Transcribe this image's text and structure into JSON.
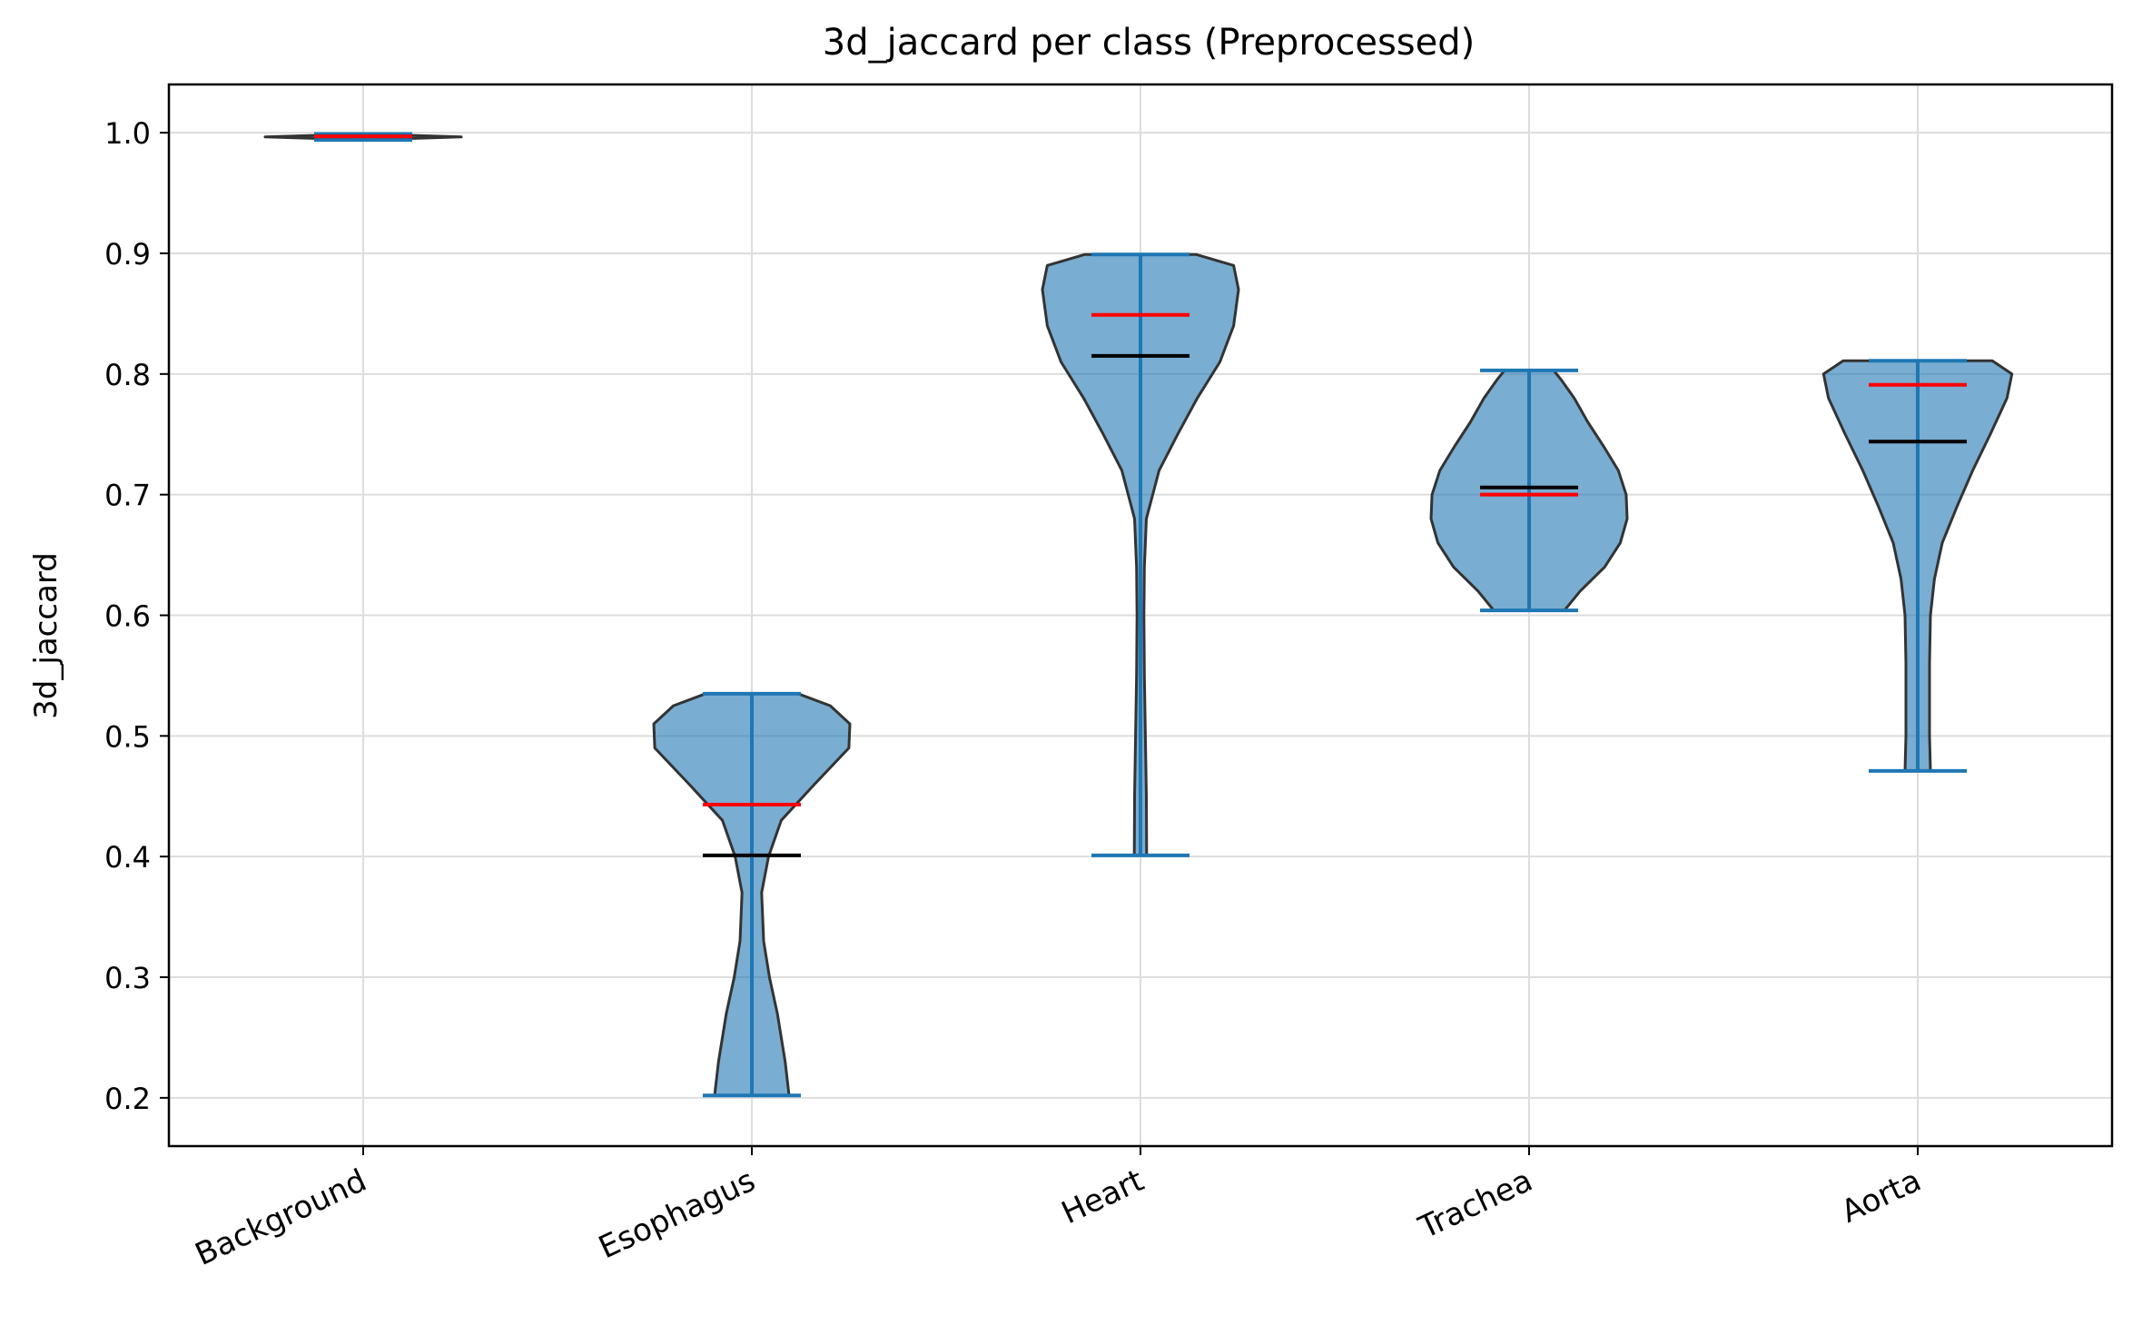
{
  "chart_data": {
    "type": "violin",
    "title": "3d_jaccard per class (Preprocessed)",
    "xlabel": "",
    "ylabel": "3d_jaccard",
    "ylim": [
      0.16,
      1.04
    ],
    "yticks": [
      0.2,
      0.3,
      0.4,
      0.5,
      0.6,
      0.7,
      0.8,
      0.9,
      1.0
    ],
    "ytick_labels": [
      "0.2",
      "0.3",
      "0.4",
      "0.5",
      "0.6",
      "0.7",
      "0.8",
      "0.9",
      "1.0"
    ],
    "grid": true,
    "tick_label_rotation_deg": 25,
    "categories": [
      "Background",
      "Esophagus",
      "Heart",
      "Trachea",
      "Aorta"
    ],
    "colors": {
      "body_fill": "#1f77b4",
      "body_edge": "#333333",
      "bar": "#1f77b4",
      "mean_line": "#ff0000",
      "median_line": "#000000",
      "grid": "#dddddd"
    },
    "series": [
      {
        "category": "Background",
        "min": 0.994,
        "max": 0.999,
        "mean": 0.997,
        "median": 0.997,
        "profile": [
          [
            0.994,
            0.0
          ],
          [
            0.9965,
            1.0
          ],
          [
            0.999,
            0.0
          ]
        ]
      },
      {
        "category": "Esophagus",
        "min": 0.202,
        "max": 0.535,
        "mean": 0.443,
        "median": 0.401,
        "profile": [
          [
            0.202,
            0.38
          ],
          [
            0.23,
            0.34
          ],
          [
            0.27,
            0.26
          ],
          [
            0.3,
            0.18
          ],
          [
            0.33,
            0.12
          ],
          [
            0.37,
            0.1
          ],
          [
            0.4,
            0.17
          ],
          [
            0.43,
            0.3
          ],
          [
            0.46,
            0.64
          ],
          [
            0.49,
            0.99
          ],
          [
            0.51,
            1.0
          ],
          [
            0.525,
            0.8
          ],
          [
            0.535,
            0.47
          ]
        ]
      },
      {
        "category": "Heart",
        "min": 0.401,
        "max": 0.899,
        "mean": 0.849,
        "median": 0.815,
        "profile": [
          [
            0.401,
            0.063
          ],
          [
            0.45,
            0.06
          ],
          [
            0.5,
            0.05
          ],
          [
            0.55,
            0.04
          ],
          [
            0.6,
            0.035
          ],
          [
            0.64,
            0.04
          ],
          [
            0.68,
            0.06
          ],
          [
            0.72,
            0.19
          ],
          [
            0.75,
            0.38
          ],
          [
            0.78,
            0.58
          ],
          [
            0.81,
            0.81
          ],
          [
            0.84,
            0.95
          ],
          [
            0.87,
            1.0
          ],
          [
            0.89,
            0.95
          ],
          [
            0.899,
            0.57
          ]
        ]
      },
      {
        "category": "Trachea",
        "min": 0.604,
        "max": 0.803,
        "mean": 0.7,
        "median": 0.706,
        "profile": [
          [
            0.604,
            0.36
          ],
          [
            0.62,
            0.52
          ],
          [
            0.64,
            0.77
          ],
          [
            0.66,
            0.93
          ],
          [
            0.68,
            1.0
          ],
          [
            0.7,
            0.99
          ],
          [
            0.72,
            0.91
          ],
          [
            0.74,
            0.76
          ],
          [
            0.76,
            0.6
          ],
          [
            0.78,
            0.46
          ],
          [
            0.795,
            0.33
          ],
          [
            0.803,
            0.25
          ]
        ]
      },
      {
        "category": "Aorta",
        "min": 0.471,
        "max": 0.811,
        "mean": 0.791,
        "median": 0.744,
        "profile": [
          [
            0.471,
            0.13
          ],
          [
            0.5,
            0.12
          ],
          [
            0.53,
            0.12
          ],
          [
            0.56,
            0.12
          ],
          [
            0.6,
            0.13
          ],
          [
            0.63,
            0.17
          ],
          [
            0.66,
            0.25
          ],
          [
            0.69,
            0.4
          ],
          [
            0.72,
            0.56
          ],
          [
            0.75,
            0.74
          ],
          [
            0.78,
            0.91
          ],
          [
            0.8,
            0.96
          ],
          [
            0.811,
            0.76
          ]
        ]
      }
    ]
  }
}
